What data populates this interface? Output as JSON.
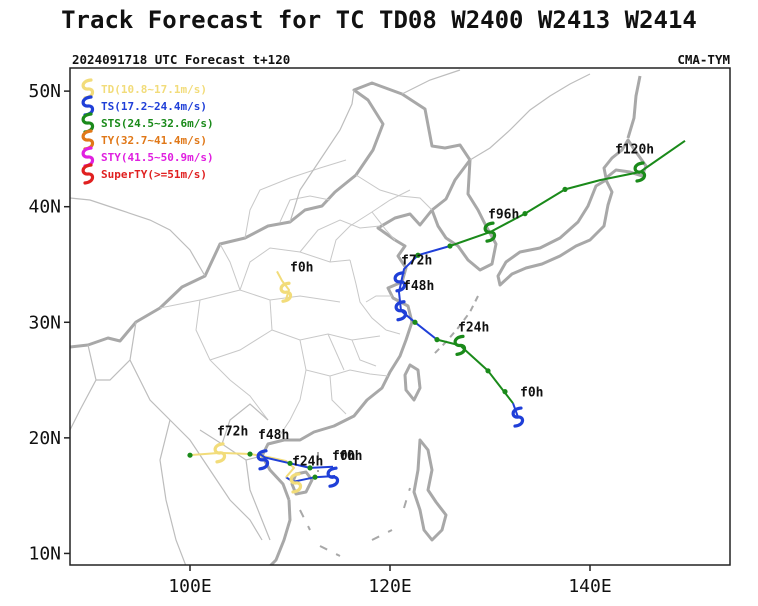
{
  "title": "Track Forecast for TC TD08 W2400 W2413 W2414",
  "subtitle_left": "2024091718 UTC Forecast t+120",
  "subtitle_right": "CMA-TYM",
  "map": {
    "lon_range": [
      88,
      154
    ],
    "lat_range": [
      9,
      52
    ],
    "lat_ticks": [
      {
        "value": 10,
        "label": "10N"
      },
      {
        "value": 20,
        "label": "20N"
      },
      {
        "value": 30,
        "label": "30N"
      },
      {
        "value": 40,
        "label": "40N"
      },
      {
        "value": 50,
        "label": "50N"
      }
    ],
    "lon_ticks": [
      {
        "value": 100,
        "label": "100E"
      },
      {
        "value": 120,
        "label": "120E"
      },
      {
        "value": 140,
        "label": "140E"
      }
    ]
  },
  "legend": [
    {
      "label": "TD(10.8~17.1m/s)",
      "color": "#f2dc7a"
    },
    {
      "label": "TS(17.2~24.4m/s)",
      "color": "#1f3fd8"
    },
    {
      "label": "STS(24.5~32.6m/s)",
      "color": "#1a8a1a"
    },
    {
      "label": "TY(32.7~41.4m/s)",
      "color": "#e07818"
    },
    {
      "label": "STY(41.5~50.9m/s)",
      "color": "#e020e0"
    },
    {
      "label": "SuperTY(>=51m/s)",
      "color": "#e02020"
    }
  ],
  "tracks": [
    {
      "segments": [
        {
          "color": "#1f3fd8",
          "points": [
            [
              132.8,
              21.8
            ],
            [
              132.3,
              23.0
            ]
          ]
        },
        {
          "color": "#1a8a1a",
          "points": [
            [
              132.3,
              23.0
            ],
            [
              129.8,
              25.8
            ],
            [
              127.0,
              28.0
            ],
            [
              124.7,
              28.5
            ]
          ]
        },
        {
          "color": "#1f3fd8",
          "points": [
            [
              124.7,
              28.5
            ],
            [
              122.5,
              30.0
            ],
            [
              121.1,
              31.0
            ],
            [
              120.9,
              32.6
            ],
            [
              121.4,
              34.6
            ],
            [
              122.8,
              35.8
            ],
            [
              126.0,
              36.6
            ]
          ]
        },
        {
          "color": "#1a8a1a",
          "points": [
            [
              126.0,
              36.6
            ],
            [
              130.0,
              37.8
            ],
            [
              133.5,
              39.4
            ],
            [
              137.5,
              41.5
            ],
            [
              141.0,
              42.3
            ],
            [
              145.0,
              43.0
            ],
            [
              149.5,
              45.7
            ]
          ]
        }
      ],
      "markers": [
        {
          "lon": 132.8,
          "lat": 21.8,
          "color": "#1f3fd8"
        },
        {
          "lon": 127.0,
          "lat": 28.0,
          "color": "#1a8a1a"
        },
        {
          "lon": 121.1,
          "lat": 31.0,
          "color": "#1f3fd8"
        },
        {
          "lon": 121.0,
          "lat": 33.5,
          "color": "#1f3fd8"
        },
        {
          "lon": 130.0,
          "lat": 37.8,
          "color": "#1a8a1a"
        },
        {
          "lon": 145.0,
          "lat": 43.0,
          "color": "#1a8a1a"
        }
      ],
      "dots": [
        [
          131.5,
          24.0
        ],
        [
          129.8,
          25.8
        ],
        [
          124.7,
          28.5
        ],
        [
          122.5,
          30.0
        ],
        [
          122.8,
          35.8
        ],
        [
          126.0,
          36.6
        ],
        [
          133.5,
          39.4
        ],
        [
          137.5,
          41.5
        ]
      ],
      "labels": [
        {
          "text": "f0h",
          "lon": 133.0,
          "lat": 23.6
        },
        {
          "text": "f24h",
          "lon": 126.8,
          "lat": 29.2
        },
        {
          "text": "f48h",
          "lon": 121.3,
          "lat": 32.8
        },
        {
          "text": "f72h",
          "lon": 121.1,
          "lat": 35.0
        },
        {
          "text": "f96h",
          "lon": 129.8,
          "lat": 39.0
        },
        {
          "text": "f120h",
          "lon": 142.5,
          "lat": 44.6
        }
      ]
    },
    {
      "segments": [
        {
          "color": "#f2dc7a",
          "points": [
            [
              109.6,
              32.0
            ],
            [
              109.9,
              32.8
            ],
            [
              109.2,
              33.6
            ],
            [
              108.7,
              34.4
            ]
          ]
        }
      ],
      "markers": [
        {
          "lon": 109.6,
          "lat": 32.6,
          "color": "#f2dc7a"
        }
      ],
      "dots": [],
      "labels": [
        {
          "text": "f0h",
          "lon": 110.0,
          "lat": 34.4
        }
      ]
    },
    {
      "segments": [
        {
          "color": "#1f3fd8",
          "points": [
            [
              114.5,
              16.7
            ],
            [
              112.5,
              16.6
            ],
            [
              110.3,
              16.2
            ],
            [
              109.6,
              16.6
            ]
          ]
        },
        {
          "color": "#f2dc7a",
          "points": [
            [
              109.6,
              16.6
            ],
            [
              110.4,
              17.4
            ],
            [
              109.6,
              18.0
            ],
            [
              108.0,
              18.3
            ],
            [
              106.0,
              18.6
            ],
            [
              103.0,
              18.7
            ],
            [
              99.8,
              18.5
            ]
          ]
        },
        {
          "color": "#1f3fd8",
          "points": [
            [
              114.3,
              17.5
            ],
            [
              112.0,
              17.4
            ],
            [
              110.0,
              17.8
            ],
            [
              107.5,
              18.3
            ],
            [
              106.8,
              18.7
            ]
          ]
        }
      ],
      "markers": [
        {
          "lon": 114.3,
          "lat": 16.6,
          "color": "#1f3fd8"
        },
        {
          "lon": 110.6,
          "lat": 16.1,
          "color": "#f2dc7a"
        },
        {
          "lon": 107.3,
          "lat": 18.1,
          "color": "#1f3fd8"
        },
        {
          "lon": 103.0,
          "lat": 18.7,
          "color": "#f2dc7a"
        }
      ],
      "dots": [
        [
          112.5,
          16.6
        ],
        [
          106.0,
          18.6
        ],
        [
          100.0,
          18.5
        ],
        [
          112.0,
          17.4
        ],
        [
          110.0,
          17.8
        ]
      ],
      "labels": [
        {
          "text": "f0h",
          "lon": 114.2,
          "lat": 18.1
        },
        {
          "text": "f0h",
          "lon": 114.9,
          "lat": 18.1
        },
        {
          "text": "f24h",
          "lon": 110.2,
          "lat": 17.6
        },
        {
          "text": "f48h",
          "lon": 106.8,
          "lat": 19.9
        },
        {
          "text": "f72h",
          "lon": 102.7,
          "lat": 20.2
        }
      ]
    }
  ]
}
